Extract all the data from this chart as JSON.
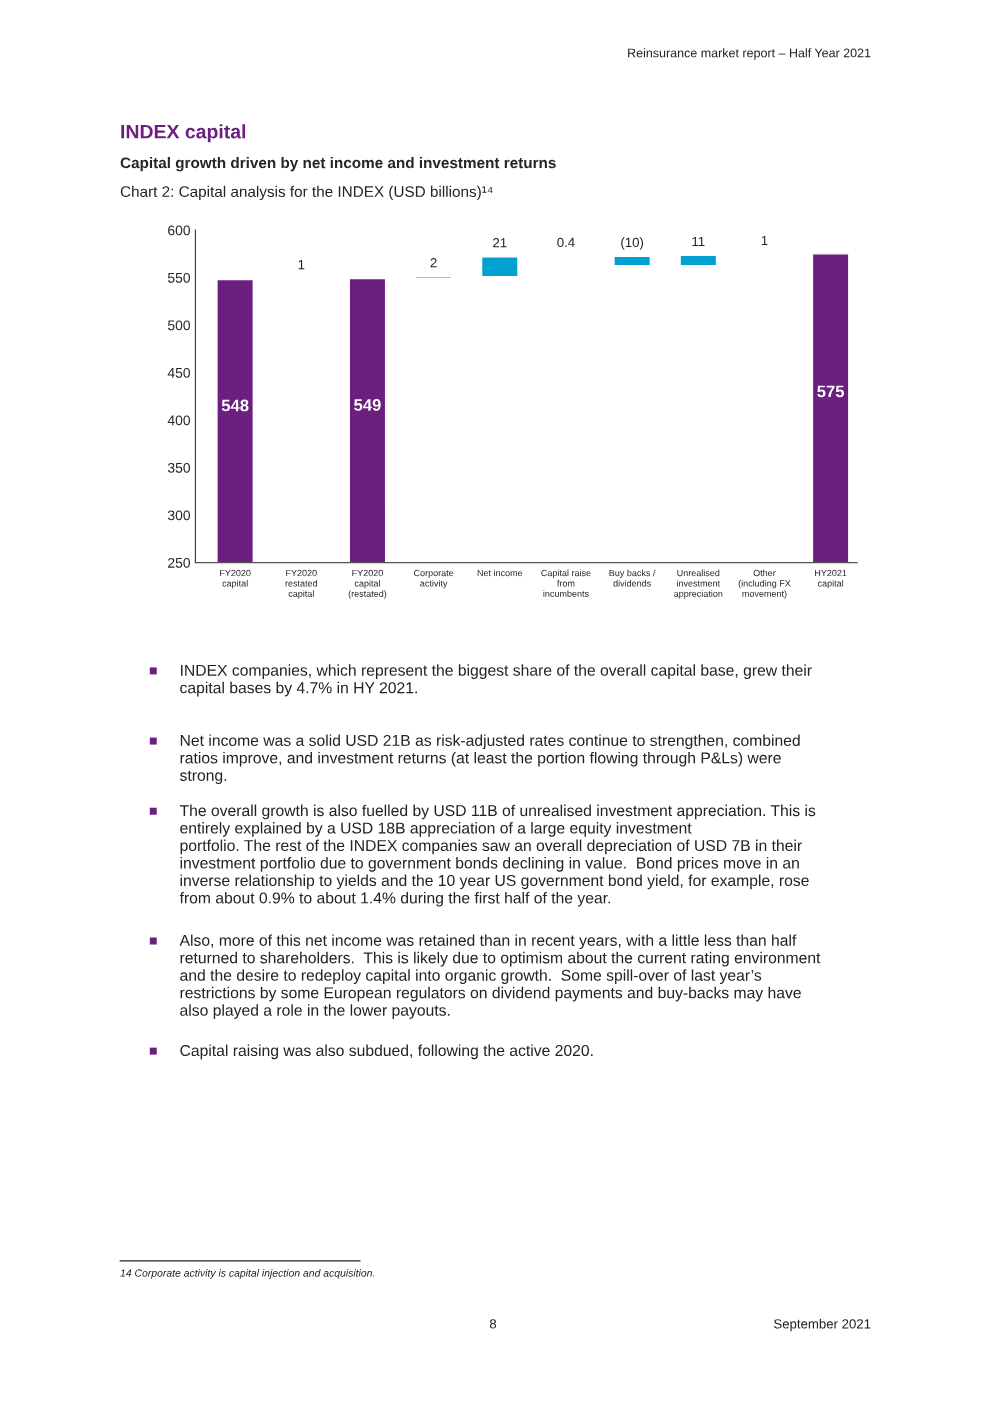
{
  "chart_data": {
    "type": "bar",
    "title": "INDEX capital",
    "subtitle": "Capital growth driven by net income and investment returns",
    "categories": [
      "FY2020\ncapital",
      "FY2020\nrestated\ncapital",
      "FY2020\ncapital\n(restated)",
      "Corporate\nactivity",
      "Net income",
      "Capital raise\nfrom\nincumbents",
      "Buy backs /\ndividends",
      "Unrealised\ninvestment\nappreciation",
      "Other\n(including FX\nmovement)",
      "HY2021\ncapital"
    ],
    "values": [
      548,
      1,
      549,
      2,
      21,
      0.4,
      -10,
      11,
      1,
      575
    ],
    "base": [
      null,
      548,
      null,
      549,
      551,
      572,
      572.4,
      562.4,
      573.4,
      null
    ],
    "colors": [
      "#6d1f80",
      "#f0a91c",
      "#6d1f80",
      "#00a0d2",
      "#00a0d2",
      "#00a0d2",
      "#00a0d2",
      "#00a0d2",
      "#00a0d2",
      "#6d1f80"
    ],
    "value_labels": [
      "548",
      "1",
      "549",
      "2",
      "21",
      "0.4",
      "(10)",
      "11",
      "1",
      "575"
    ],
    "ylim": [
      250,
      600
    ],
    "yticks": [
      250,
      300,
      350,
      400,
      450,
      500,
      550,
      600
    ],
    "grid": false,
    "legend": false,
    "annotations": [
      "Reinsurance market report – Half Year 2021",
      "Chart 2: Capital analysis for the INDEX (USD billions)¹⁴",
      "INDEX companies, which represent the biggest share of the overall capital base, grew their\ncapital bases by 4.7% in HY 2021.",
      "Net income was a solid USD 21B as risk-adjusted rates continue to strengthen, combined\nratios improve, and investment returns (at least the portion flowing through P&Ls) were\nstrong.",
      "The overall growth is also fuelled by USD 11B of unrealised investment appreciation. This is\nentirely explained by a USD 18B appreciation of a large equity investment\nportfolio. The rest of the INDEX companies saw an overall depreciation of USD 7B in their\ninvestment portfolio due to government bonds declining in value.  Bond prices move in an\ninverse relationship to yields and the 10 year US government bond yield, for example, rose\nfrom about 0.9% to about 1.4% during the first half of the year.",
      "Also, more of this net income was retained than in recent years, with a little less than half\nreturned to shareholders.  This is likely due to optimism about the current rating environment\nand the desire to redeploy capital into organic growth.  Some spill-over of last year’s\nrestrictions by some European regulators on dividend payments and buy-backs may have\nalso played a role in the lower payouts.",
      "Capital raising was also subdued, following the active 2020.",
      "14 Corporate activity is capital injection and acquisition.",
      "8",
      "September 2021"
    ]
  }
}
